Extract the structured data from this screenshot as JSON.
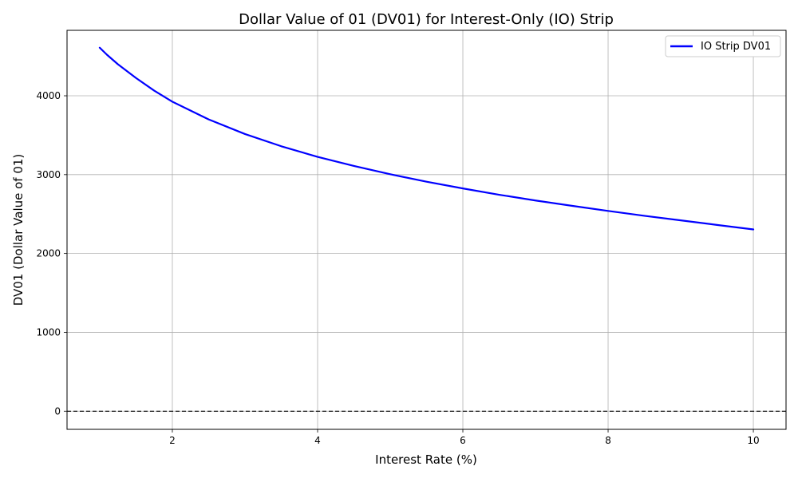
{
  "chart_data": {
    "type": "line",
    "title": "Dollar Value of 01 (DV01) for Interest-Only (IO) Strip",
    "xlabel": "Interest Rate (%)",
    "ylabel": "DV01 (Dollar Value of 01)",
    "xlim": [
      0.55,
      10.45
    ],
    "ylim": [
      -230,
      4830
    ],
    "xticks": [
      2,
      4,
      6,
      8,
      10
    ],
    "yticks": [
      0,
      1000,
      2000,
      3000,
      4000
    ],
    "grid": true,
    "legend_position": "top-right",
    "reference_line": {
      "y": 0,
      "style": "dashed",
      "color": "#000000"
    },
    "series": [
      {
        "name": "IO Strip DV01",
        "color": "#0000ff",
        "x": [
          1.0,
          1.1,
          1.25,
          1.5,
          1.75,
          2.0,
          2.5,
          3.0,
          3.5,
          4.0,
          4.5,
          5.0,
          5.5,
          6.0,
          6.5,
          7.0,
          7.5,
          8.0,
          8.5,
          9.0,
          9.5,
          10.0
        ],
        "y": [
          4610,
          4520,
          4400,
          4225,
          4065,
          3925,
          3700,
          3515,
          3360,
          3225,
          3110,
          3005,
          2910,
          2825,
          2745,
          2672,
          2605,
          2540,
          2478,
          2420,
          2362,
          2305
        ]
      }
    ]
  }
}
